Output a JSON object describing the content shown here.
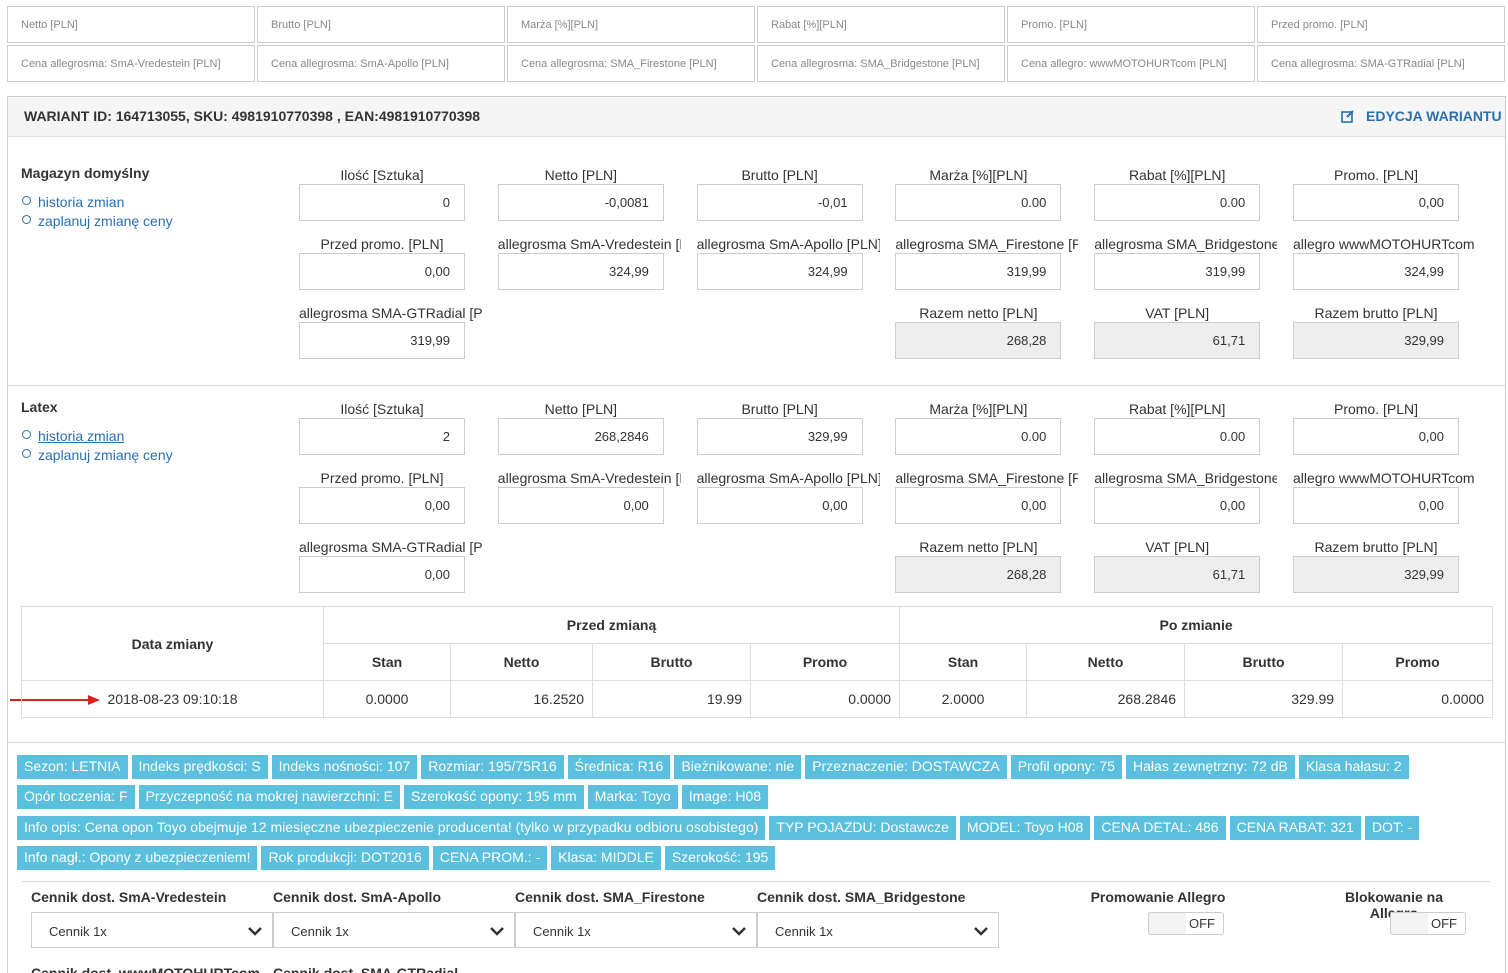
{
  "filters": [
    [
      "Netto [PLN]",
      "Brutto [PLN]",
      "Marża [%][PLN]",
      "Rabat [%][PLN]",
      "Promo. [PLN]",
      "Przed promo. [PLN]"
    ],
    [
      "Cena allegrosma:  SmA-Vredestein [PLN]",
      "Cena allegrosma:  SmA-Apollo [PLN]",
      "Cena allegrosma:  SMA_Firestone [PLN]",
      "Cena allegrosma:  SMA_Bridgestone [PLN]",
      "Cena allegro:  wwwMOTOHURTcom [PLN]",
      "Cena allegrosma:  SMA-GTRadial [PLN]"
    ]
  ],
  "variant": {
    "title": "WARIANT ID: 164713055, SKU: 4981910770398 , EAN:4981910770398",
    "edit": "EDYCJA WARIANTU"
  },
  "warehouses": [
    {
      "name": "Magazyn domyślny",
      "links": [
        "historia zmian",
        "zaplanuj zmianę ceny"
      ],
      "fields": [
        {
          "label": "Ilość [Sztuka]",
          "value": "0"
        },
        {
          "label": "Netto [PLN]",
          "value": "-0,0081"
        },
        {
          "label": "Brutto [PLN]",
          "value": "-0,01"
        },
        {
          "label": "Marża [%][PLN]",
          "value": "0.00"
        },
        {
          "label": "Rabat [%][PLN]",
          "value": "0.00"
        },
        {
          "label": "Promo. [PLN]",
          "value": "0,00"
        },
        {
          "label": "Przed promo. [PLN]",
          "value": "0,00"
        },
        {
          "label": "allegrosma SmA-Vredestein [PLN]",
          "value": "324,99"
        },
        {
          "label": "allegrosma SmA-Apollo [PLN]",
          "value": "324,99"
        },
        {
          "label": "allegrosma SMA_Firestone [PLN]",
          "value": "319,99"
        },
        {
          "label": "allegrosma SMA_Bridgestone [PLN]",
          "value": "319,99"
        },
        {
          "label": "allegro wwwMOTOHURTcom [PLN]",
          "value": "324,99"
        },
        {
          "label": "allegrosma SMA-GTRadial [PLN]",
          "value": "319,99"
        },
        {
          "label": "Razem netto [PLN]",
          "value": "268,28"
        },
        {
          "label": "VAT [PLN]",
          "value": "61,71"
        },
        {
          "label": "Razem brutto [PLN]",
          "value": "329,99"
        }
      ]
    },
    {
      "name": "Latex",
      "links": [
        "historia zmian",
        "zaplanuj zmianę ceny"
      ],
      "fields": [
        {
          "label": "Ilość [Sztuka]",
          "value": "2"
        },
        {
          "label": "Netto [PLN]",
          "value": "268,2846"
        },
        {
          "label": "Brutto [PLN]",
          "value": "329,99"
        },
        {
          "label": "Marża [%][PLN]",
          "value": "0.00"
        },
        {
          "label": "Rabat [%][PLN]",
          "value": "0.00"
        },
        {
          "label": "Promo. [PLN]",
          "value": "0,00"
        },
        {
          "label": "Przed promo. [PLN]",
          "value": "0,00"
        },
        {
          "label": "allegrosma SmA-Vredestein [PLN]",
          "value": "0,00"
        },
        {
          "label": "allegrosma SmA-Apollo [PLN]",
          "value": "0,00"
        },
        {
          "label": "allegrosma SMA_Firestone [PLN]",
          "value": "0,00"
        },
        {
          "label": "allegrosma SMA_Bridgestone [PLN]",
          "value": "0,00"
        },
        {
          "label": "allegro wwwMOTOHURTcom [PLN]",
          "value": "0,00"
        },
        {
          "label": "allegrosma SMA-GTRadial [PLN]",
          "value": "0,00"
        },
        {
          "label": "Razem netto [PLN]",
          "value": "268,28"
        },
        {
          "label": "VAT [PLN]",
          "value": "61,71"
        },
        {
          "label": "Razem brutto [PLN]",
          "value": "329,99"
        }
      ]
    }
  ],
  "history": {
    "date": "Data zmiany",
    "before": "Przed zmianą",
    "after": "Po zmianie",
    "cols": [
      "Stan",
      "Netto",
      "Brutto",
      "Promo",
      "Stan",
      "Netto",
      "Brutto",
      "Promo"
    ],
    "rows": [
      [
        "2018-08-23 09:10:18",
        "0.0000",
        "16.2520",
        "19.99",
        "0.0000",
        "2.0000",
        "268.2846",
        "329.99",
        "0.0000"
      ]
    ]
  },
  "tags": [
    [
      "Sezon: LETNIA",
      "Indeks prędkości: S",
      "Indeks nośności: 107",
      "Rozmiar: 195/75R16",
      "Średnica: R16",
      "Bieżnikowane: nie",
      "Przeznaczenie: DOSTAWCZA",
      "Profil opony: 75",
      "Hałas zewnętrzny: 72 dB",
      "Klasa hałasu: 2"
    ],
    [
      "Opór toczenia: F",
      "Przyczepność na mokrej nawierzchni: E",
      "Szerokość opony: 195 mm",
      "Marka: Toyo",
      "Image: H08"
    ],
    [
      "Info opis: Cena opon Toyo obejmuje 12 miesięczne ubezpieczenie producenta! (tylko w przypadku odbioru osobistego)",
      "TYP POJAZDU: Dostawcze",
      "MODEL: Toyo H08",
      "CENA DETAL: 486",
      "CENA RABAT: 321",
      "DOT: -"
    ],
    [
      "Info nagł.: Opony z ubezpieczeniem!",
      "Rok produkcji: DOT2016",
      "CENA PROM.: -",
      "Klasa: MIDDLE",
      "Szerokość: 195"
    ]
  ],
  "pricelists": [
    {
      "label": "Cennik dost. SmA-Vredestein",
      "value": "Cennik 1x"
    },
    {
      "label": "Cennik dost. SmA-Apollo",
      "value": "Cennik 1x"
    },
    {
      "label": "Cennik dost. SMA_Firestone",
      "value": "Cennik 1x"
    },
    {
      "label": "Cennik dost. SMA_Bridgestone",
      "value": "Cennik 1x"
    }
  ],
  "toggles": [
    {
      "label": "Promowanie Allegro",
      "state": "OFF"
    },
    {
      "label": "Blokowanie na Allegro",
      "state": "OFF"
    }
  ],
  "pricelists_next": [
    "Cennik dost. wwwMOTOHURTcom",
    "Cennik dost. SMA-GTRadial"
  ]
}
